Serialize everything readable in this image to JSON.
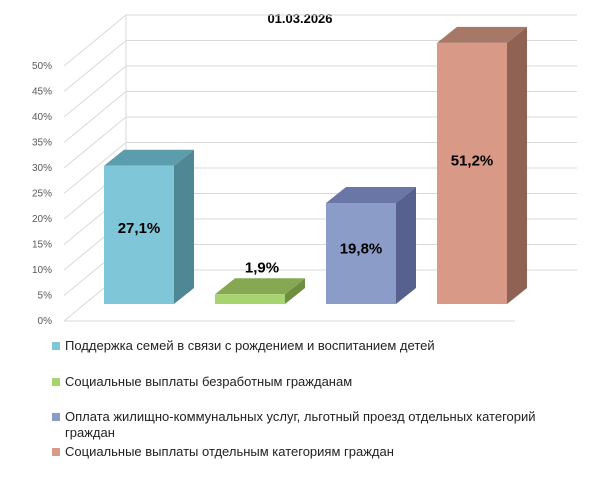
{
  "chart_data": {
    "type": "bar",
    "title": "01.03.2026",
    "y_ticks": [
      "0%",
      "5%",
      "10%",
      "15%",
      "20%",
      "25%",
      "30%",
      "35%",
      "40%",
      "45%",
      "50%"
    ],
    "ylim": [
      0,
      50
    ],
    "grid": true,
    "legend_position": "bottom",
    "series": [
      {
        "name": "Поддержка семей в связи с рождением и воспитанием детей",
        "value": 27.1,
        "label": "27,1%",
        "front": "#7fc6d8",
        "side": "#4f8795",
        "top": "#5b9cad",
        "label_inside": true
      },
      {
        "name": "Социальные выплаты безработным гражданам",
        "value": 1.9,
        "label": "1,9%",
        "front": "#a8d46f",
        "side": "#6d8f3f",
        "top": "#86a852",
        "label_inside": false
      },
      {
        "name": "Оплата жилищно-коммунальных услуг, льготный проезд отдельных категорий граждан",
        "value": 19.8,
        "label": "19,8%",
        "front": "#8c9cc9",
        "side": "#566190",
        "top": "#6a77a6",
        "label_inside": true
      },
      {
        "name": "Социальные выплаты отдельным категориям граждан",
        "value": 51.2,
        "label": "51,2%",
        "front": "#d89a86",
        "side": "#8f6253",
        "top": "#a67868",
        "label_inside": true
      }
    ]
  }
}
